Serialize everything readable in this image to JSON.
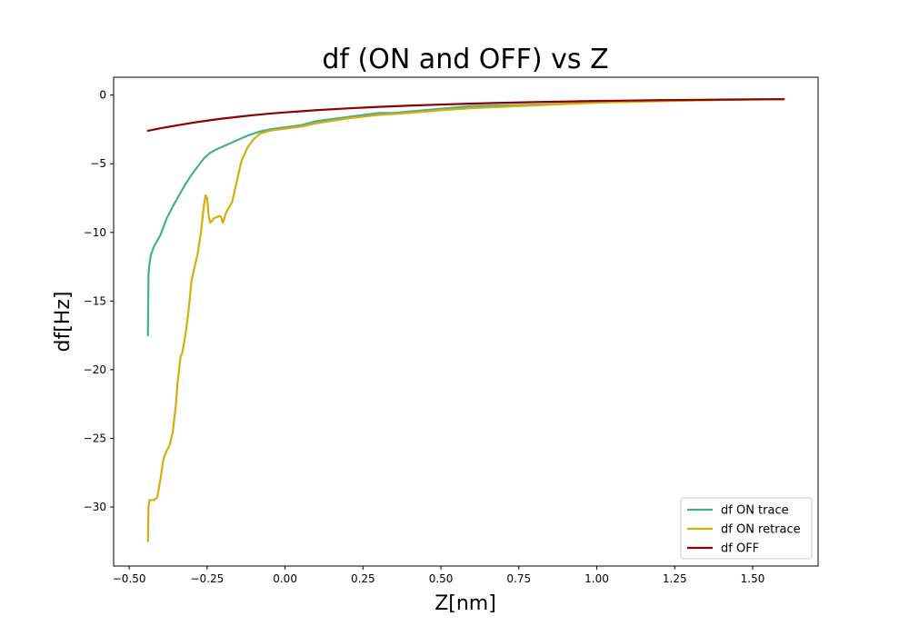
{
  "chart_data": {
    "type": "line",
    "title": "df (ON and OFF) vs Z",
    "xlabel": "Z[nm]",
    "ylabel": "df[Hz]",
    "xlim": [
      -0.55,
      1.71
    ],
    "ylim": [
      -34.3,
      1.3
    ],
    "xticks": [
      -0.5,
      -0.25,
      0.0,
      0.25,
      0.5,
      0.75,
      1.0,
      1.25,
      1.5
    ],
    "xtick_labels": [
      "−0.50",
      "−0.25",
      "0.00",
      "0.25",
      "0.50",
      "0.75",
      "1.00",
      "1.25",
      "1.50"
    ],
    "yticks": [
      0,
      -5,
      -10,
      -15,
      -20,
      -25,
      -30
    ],
    "ytick_labels": [
      "0",
      "−5",
      "−10",
      "−15",
      "−20",
      "−25",
      "−30"
    ],
    "grid": false,
    "legend_position": "lower-right",
    "series": [
      {
        "name": "df ON trace",
        "color": "#45b08c",
        "x": [
          -0.44,
          -0.438,
          -0.435,
          -0.43,
          -0.42,
          -0.4,
          -0.38,
          -0.36,
          -0.34,
          -0.32,
          -0.3,
          -0.28,
          -0.26,
          -0.24,
          -0.22,
          -0.2,
          -0.18,
          -0.15,
          -0.12,
          -0.1,
          -0.08,
          -0.05,
          -0.02,
          0.0,
          0.05,
          0.1,
          0.15,
          0.2,
          0.25,
          0.3,
          0.35,
          0.4,
          0.5,
          0.6,
          0.7,
          0.8,
          1.0,
          1.2,
          1.4,
          1.6
        ],
        "y": [
          -17.5,
          -13.0,
          -12.3,
          -11.6,
          -11.0,
          -10.2,
          -9.0,
          -8.1,
          -7.3,
          -6.5,
          -5.8,
          -5.2,
          -4.6,
          -4.2,
          -3.95,
          -3.75,
          -3.55,
          -3.25,
          -2.95,
          -2.8,
          -2.65,
          -2.5,
          -2.4,
          -2.35,
          -2.2,
          -1.9,
          -1.75,
          -1.6,
          -1.45,
          -1.3,
          -1.3,
          -1.2,
          -1.0,
          -0.8,
          -0.75,
          -0.7,
          -0.55,
          -0.42,
          -0.35,
          -0.3
        ]
      },
      {
        "name": "df ON retrace",
        "color": "#d9ab0b",
        "x": [
          -0.44,
          -0.438,
          -0.435,
          -0.42,
          -0.41,
          -0.4,
          -0.39,
          -0.38,
          -0.37,
          -0.36,
          -0.355,
          -0.35,
          -0.345,
          -0.34,
          -0.335,
          -0.33,
          -0.32,
          -0.31,
          -0.3,
          -0.29,
          -0.28,
          -0.27,
          -0.26,
          -0.255,
          -0.25,
          -0.245,
          -0.24,
          -0.235,
          -0.23,
          -0.22,
          -0.21,
          -0.205,
          -0.2,
          -0.195,
          -0.19,
          -0.18,
          -0.17,
          -0.16,
          -0.15,
          -0.14,
          -0.12,
          -0.1,
          -0.08,
          -0.05,
          -0.02,
          0.0,
          0.05,
          0.1,
          0.2,
          0.3,
          0.4,
          0.5,
          0.6,
          0.8,
          1.0,
          1.2,
          1.4,
          1.6
        ],
        "y": [
          -32.5,
          -30.0,
          -29.5,
          -29.5,
          -29.3,
          -28.0,
          -26.5,
          -25.9,
          -25.5,
          -24.5,
          -23.5,
          -22.5,
          -21.0,
          -20.0,
          -19.0,
          -18.8,
          -17.5,
          -15.8,
          -13.5,
          -12.5,
          -11.5,
          -10.0,
          -8.0,
          -7.3,
          -7.5,
          -8.8,
          -9.3,
          -9.2,
          -9.0,
          -8.9,
          -8.8,
          -8.9,
          -9.3,
          -9.0,
          -8.6,
          -8.2,
          -7.8,
          -6.8,
          -5.8,
          -4.8,
          -3.8,
          -3.2,
          -2.8,
          -2.6,
          -2.5,
          -2.45,
          -2.3,
          -2.05,
          -1.7,
          -1.45,
          -1.3,
          -1.1,
          -0.95,
          -0.75,
          -0.55,
          -0.45,
          -0.35,
          -0.3
        ]
      },
      {
        "name": "df OFF",
        "color": "#8b0000",
        "x": [
          -0.44,
          -0.4,
          -0.35,
          -0.3,
          -0.25,
          -0.2,
          -0.15,
          -0.1,
          -0.05,
          0.0,
          0.05,
          0.1,
          0.2,
          0.3,
          0.4,
          0.5,
          0.6,
          0.7,
          0.8,
          0.9,
          1.0,
          1.1,
          1.2,
          1.3,
          1.4,
          1.5,
          1.6
        ],
        "y": [
          -2.6,
          -2.42,
          -2.22,
          -2.03,
          -1.86,
          -1.71,
          -1.58,
          -1.46,
          -1.35,
          -1.26,
          -1.18,
          -1.1,
          -0.97,
          -0.86,
          -0.77,
          -0.69,
          -0.62,
          -0.56,
          -0.51,
          -0.47,
          -0.43,
          -0.4,
          -0.37,
          -0.35,
          -0.33,
          -0.31,
          -0.3
        ]
      }
    ]
  }
}
